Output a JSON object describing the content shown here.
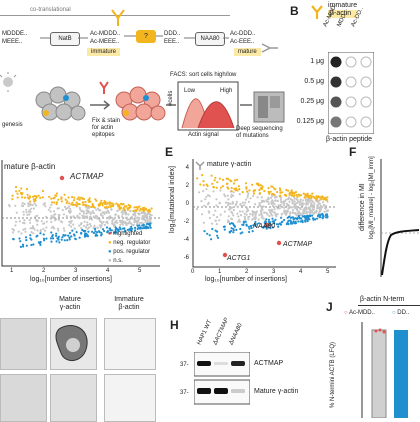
{
  "panel_a": {
    "cotrans_label": "co-translational",
    "seq_left1": "MDDDE..",
    "seq_left2": "MEEE..",
    "natb": "NatB",
    "seq_ac1": "Ac-MDDD..",
    "seq_ac2": "Ac-MEEE..",
    "question": "?",
    "seq_mid1": "DDD..",
    "seq_mid2": "EEE..",
    "naa80": "NAA80",
    "seq_mat1": "Ac-DDD..",
    "seq_mat2": "Ac-EEE..",
    "immature_label": "immature",
    "mature_label": "mature"
  },
  "panel_b": {
    "letter": "B",
    "title1": "immature",
    "title2": "β-actin",
    "col1": "Ac-MDD..",
    "col2": "MDD..",
    "col3": "Ac-DD..",
    "rows": [
      "1 μg",
      "0.5 μg",
      "0.25 μg",
      "0.125 μg"
    ],
    "xlabel": "β-actin peptide"
  },
  "panel_flow": {
    "genesis": "genesis",
    "fix_stain": "Fix & stain\nfor actin\nepitopes",
    "facs": "FACS: sort cells high/low",
    "low": "Low",
    "high": "High",
    "cells_axis": "#cells",
    "actin_signal": "Actin signal",
    "deep_seq": "Deep sequencing\nof mutations"
  },
  "panel_d": {
    "title": "mature β-actin",
    "gene": "ACTMAP",
    "legend": [
      "highlighted",
      "neg. regulator",
      "pos. regulator",
      "n.s."
    ],
    "xlabel": "log₁₀[number of insertions]",
    "xticks": [
      "1",
      "2",
      "3",
      "4",
      "5"
    ]
  },
  "panel_e": {
    "letter": "E",
    "title": "mature γ-actin",
    "ylabel": "log₂[mutational index]",
    "xlabel": "log₁₀[number of insertions]",
    "yticks": [
      "4",
      "2",
      "0",
      "-2",
      "-4",
      "-6"
    ],
    "xticks": [
      "0",
      "1",
      "2",
      "3",
      "4",
      "5"
    ],
    "genes": [
      "NAA80",
      "ACTMAP",
      "ACTG1"
    ]
  },
  "panel_f": {
    "letter": "F",
    "ylabel": "difference in MI",
    "ylabel2": "log₂[MI_mature] - log₂[MI_imm]"
  },
  "panel_g": {
    "col1": "Mature\nγ-actin",
    "col2": "Immature\nβ-actin"
  },
  "panel_h": {
    "letter": "H",
    "lanes": [
      "HAP1 WT",
      "ΔACTMAP",
      "ΔNAA80"
    ],
    "bands": [
      "ACTMAP",
      "Mature γ-actin"
    ],
    "markers": [
      "37-",
      "37-"
    ]
  },
  "panel_j": {
    "letter": "J",
    "title": "β-actin N-term",
    "legend1": "Ac-MDD..",
    "legend2": "DD..",
    "ylabel": "% N-termini ACTB (LFQ)"
  },
  "colors": {
    "highlight": "#e0524f",
    "neg": "#f2b51e",
    "pos": "#1f8fd0",
    "ns": "#bdbdbd",
    "yellow_box": "#fbe9a6"
  },
  "chart_data": [
    {
      "type": "scatter",
      "title": "mature γ-actin",
      "xlabel": "log₁₀[number of insertions]",
      "ylabel": "log₂[mutational index]",
      "xlim": [
        0,
        5
      ],
      "ylim": [
        -6,
        4
      ],
      "series": [
        {
          "name": "highlighted",
          "points": [
            [
              3.1,
              -2.6
            ],
            [
              1.7,
              -4.6
            ],
            [
              2.7,
              -1.9
            ]
          ]
        }
      ]
    }
  ]
}
